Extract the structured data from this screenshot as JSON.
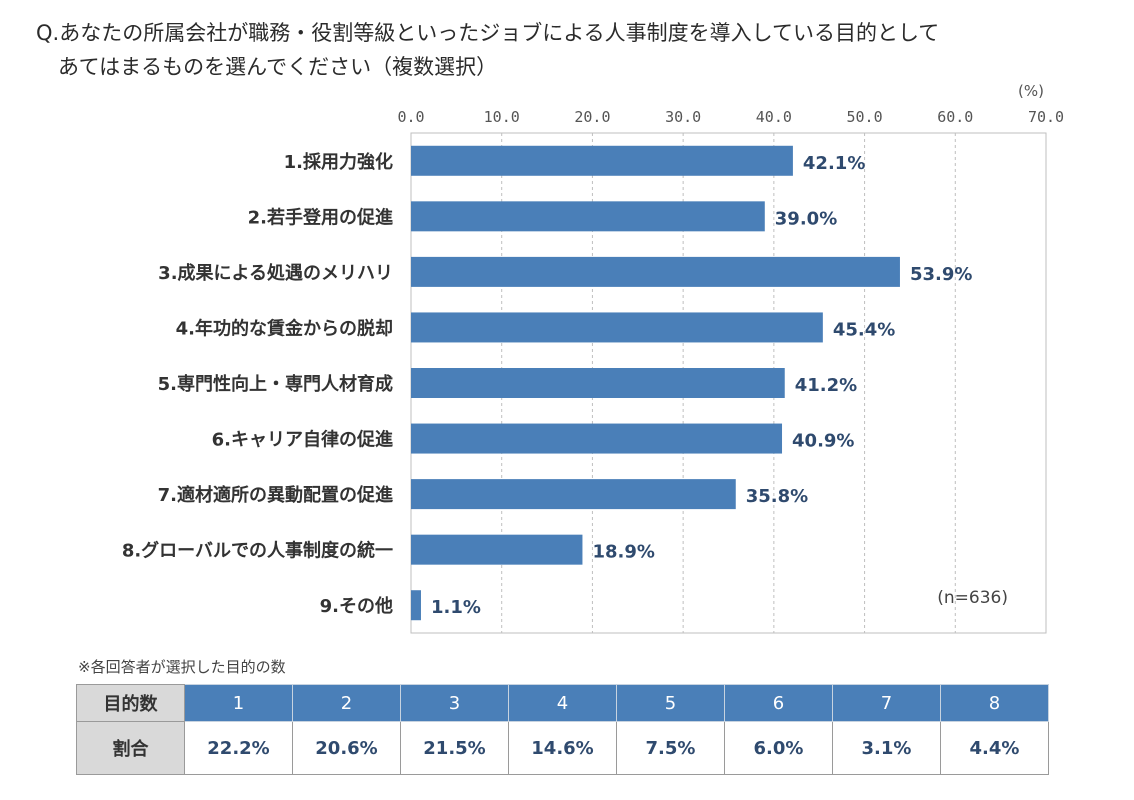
{
  "title": {
    "line1": "Q.あなたの所属会社が職務・役割等級といったジョブによる人事制度を導入している目的として",
    "line2": "あてはまるものを選んでください（複数選択）"
  },
  "colors": {
    "bar": "#4a7fb8",
    "value_label": "#2f4a6e",
    "axis": "#555555",
    "grid": "#bfbfbf"
  },
  "chart_data": {
    "type": "bar",
    "orientation": "horizontal",
    "unit_label": "(%)",
    "sample_note": "(n=636)",
    "xlim": [
      0,
      70
    ],
    "ticks": [
      "0.0",
      "10.0",
      "20.0",
      "30.0",
      "40.0",
      "50.0",
      "60.0",
      "70.0"
    ],
    "grid": true,
    "categories": [
      "1.採用力強化",
      "2.若手登用の促進",
      "3.成果による処遇のメリハリ",
      "4.年功的な賃金からの脱却",
      "5.専門性向上・専門人材育成",
      "6.キャリア自律の促進",
      "7.適材適所の異動配置の促進",
      "8.グローバルでの人事制度の統一",
      "9.その他"
    ],
    "values": [
      42.1,
      39.0,
      53.9,
      45.4,
      41.2,
      40.9,
      35.8,
      18.9,
      1.1
    ],
    "value_labels": [
      "42.1%",
      "39.0%",
      "53.9%",
      "45.4%",
      "41.2%",
      "40.9%",
      "35.8%",
      "18.9%",
      "1.1%"
    ]
  },
  "distribution": {
    "note": "※各回答者が選択した目的の数",
    "header_label": "目的数",
    "row_label": "割合",
    "counts": [
      "1",
      "2",
      "3",
      "4",
      "5",
      "6",
      "7",
      "8"
    ],
    "shares": [
      "22.2%",
      "20.6%",
      "21.5%",
      "14.6%",
      "7.5%",
      "6.0%",
      "3.1%",
      "4.4%"
    ]
  }
}
